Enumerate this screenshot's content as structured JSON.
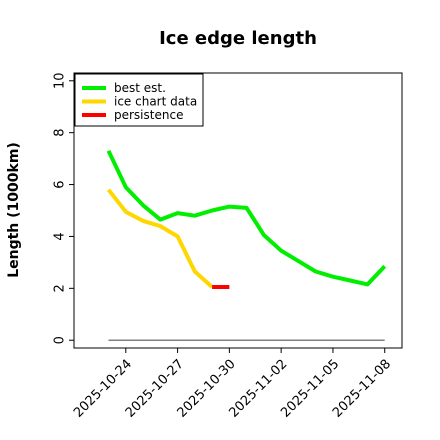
{
  "chart_data": {
    "type": "line",
    "title": "Ice edge length",
    "xlabel": "",
    "ylabel": "Length (1000km)",
    "xlim": [
      "2025-10-21",
      "2025-11-09"
    ],
    "ylim": [
      -0.3,
      10.3
    ],
    "y_ticks": [
      0,
      2,
      4,
      6,
      8,
      10
    ],
    "x_ticks": [
      "2025-10-24",
      "2025-10-27",
      "2025-10-30",
      "2025-11-02",
      "2025-11-05",
      "2025-11-08"
    ],
    "grid": false,
    "legend_position": "top-left",
    "series": [
      {
        "name": "best est.",
        "color": "#00ee00",
        "x": [
          "2025-10-23",
          "2025-10-24",
          "2025-10-25",
          "2025-10-26",
          "2025-10-27",
          "2025-10-28",
          "2025-10-29",
          "2025-10-30",
          "2025-10-31",
          "2025-11-01",
          "2025-11-02",
          "2025-11-03",
          "2025-11-04",
          "2025-11-05",
          "2025-11-06",
          "2025-11-07",
          "2025-11-08"
        ],
        "values": [
          7.3,
          5.9,
          5.2,
          4.65,
          4.9,
          4.8,
          5.0,
          5.15,
          5.1,
          4.05,
          3.45,
          3.05,
          2.65,
          2.45,
          2.3,
          2.15,
          2.85
        ]
      },
      {
        "name": "ice chart data",
        "color": "#ffd700",
        "x": [
          "2025-10-23",
          "2025-10-24",
          "2025-10-25",
          "2025-10-26",
          "2025-10-27",
          "2025-10-28",
          "2025-10-29"
        ],
        "values": [
          5.8,
          4.95,
          4.6,
          4.4,
          4.0,
          2.65,
          2.05
        ]
      },
      {
        "name": "persistence",
        "color": "#ff0000",
        "x": [
          "2025-10-29",
          "2025-10-30"
        ],
        "values": [
          2.05,
          2.05
        ]
      },
      {
        "color": "#808080",
        "x": [
          "2025-10-23",
          "2025-11-08"
        ],
        "values": [
          0,
          0
        ]
      }
    ]
  }
}
